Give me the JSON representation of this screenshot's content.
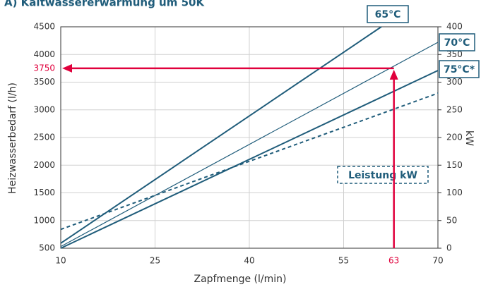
{
  "chart_data": {
    "type": "line",
    "title": "A) Kaltwassererwärmung um 50K",
    "x_label": "Zapfmenge (l/min)",
    "y_label": "Heizwasserbedarf (l/h)",
    "y2_label": "kW",
    "xlim": [
      10,
      70
    ],
    "xticks": [
      10,
      25,
      40,
      55,
      70
    ],
    "ylim": [
      500,
      4500
    ],
    "yticks": [
      500,
      1000,
      1500,
      2000,
      2500,
      3000,
      3500,
      4000,
      4500
    ],
    "y2lim": [
      0,
      400
    ],
    "y2ticks": [
      0,
      50,
      100,
      150,
      200,
      250,
      300,
      350,
      400
    ],
    "grid": true,
    "series": [
      {
        "name": "65°C",
        "color": "#1f5c7a",
        "x": [
          10,
          61
        ],
        "values": [
          590,
          4500
        ]
      },
      {
        "name": "70°C",
        "color": "#1f5c7a",
        "x": [
          10,
          70
        ],
        "values": [
          530,
          4220
        ]
      },
      {
        "name": "75°C*",
        "color": "#1f5c7a",
        "x": [
          10,
          70
        ],
        "values": [
          500,
          3710
        ]
      },
      {
        "name": "Leistung kW",
        "color": "#1f5c7a",
        "axis": "y2",
        "dashed": true,
        "x": [
          10,
          70
        ],
        "values": [
          34,
          280
        ]
      }
    ],
    "marker": {
      "x": 63,
      "y": 3750,
      "color": "#e0003c"
    }
  }
}
